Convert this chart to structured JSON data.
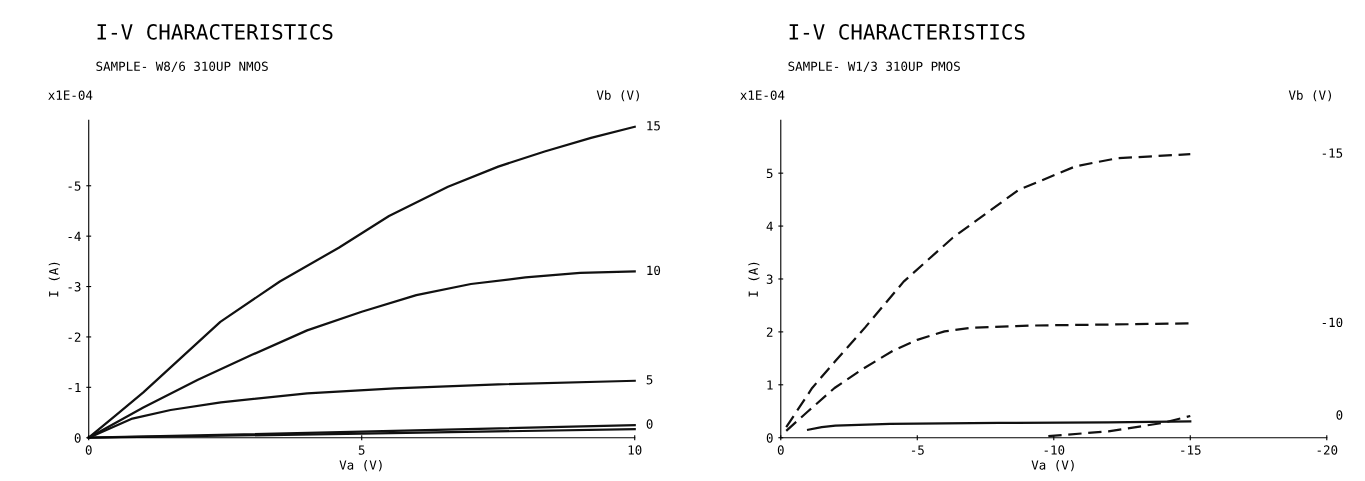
{
  "chart_data": [
    {
      "type": "line",
      "title": "I-V CHARACTERISTICS",
      "subtitle": "SAMPLE- W8/6 310UP NMOS",
      "xlabel": "Va (V)",
      "ylabel": "I (A)",
      "legend_title": "Vb (V)",
      "annotations": [
        "x1E-04"
      ],
      "xlim": [
        0,
        10
      ],
      "ylim": [
        0,
        -6.3
      ],
      "xticks": [
        0,
        5,
        10
      ],
      "yticks": [
        0,
        -1,
        -2,
        -3,
        -4,
        -5
      ],
      "grid": false,
      "legend": false,
      "line_style": "solid",
      "marker": "none",
      "series": [
        {
          "name": "15",
          "color": "#111111",
          "x": [
            0,
            0.5,
            1,
            2.41,
            3.5,
            4.58,
            5.5,
            6.58,
            7.5,
            8.35,
            9.2,
            10
          ],
          "values": [
            0,
            -0.45,
            -0.9,
            -2.3,
            -3.1,
            -3.77,
            -4.4,
            -4.98,
            -5.38,
            -5.68,
            -5.95,
            -6.17
          ]
        },
        {
          "name": "10",
          "color": "#111111",
          "x": [
            0,
            1,
            2,
            3,
            4,
            5,
            6,
            7,
            8,
            9,
            10
          ],
          "values": [
            0,
            -0.6,
            -1.15,
            -1.65,
            -2.13,
            -2.5,
            -2.83,
            -3.05,
            -3.18,
            -3.27,
            -3.3
          ]
        },
        {
          "name": "5",
          "color": "#111111",
          "x": [
            0,
            0.8,
            1.5,
            2.42,
            4,
            5.6,
            7.5,
            10
          ],
          "values": [
            0,
            -0.38,
            -0.55,
            -0.7,
            -0.88,
            -0.98,
            -1.06,
            -1.13
          ]
        },
        {
          "name": "0",
          "color": "#111111",
          "x": [
            0,
            5,
            10
          ],
          "values": [
            0,
            -0.12,
            -0.25
          ]
        },
        {
          "color": "#111111",
          "x": [
            0,
            5,
            10
          ],
          "values": [
            0,
            -0.08,
            -0.17
          ]
        }
      ]
    },
    {
      "type": "line",
      "title": "I-V CHARACTERISTICS",
      "subtitle": "SAMPLE- W1/3 310UP PMOS",
      "xlabel": "Va (V)",
      "ylabel": "I (A)",
      "legend_title": "Vb (V)",
      "annotations": [
        "x1E-04"
      ],
      "xlim": [
        0,
        -20
      ],
      "ylim": [
        0,
        6
      ],
      "xticks": [
        0,
        -5,
        -10,
        -15,
        -20
      ],
      "yticks": [
        0,
        1,
        2,
        3,
        4,
        5
      ],
      "grid": false,
      "legend": false,
      "marker": "none",
      "series": [
        {
          "name": "-15",
          "color": "#111111",
          "line_style": "dashed",
          "x": [
            -0.2,
            -1.15,
            -2,
            -3.1,
            -4.5,
            -6.3,
            -8.7,
            -10.8,
            -12.3,
            -15
          ],
          "values": [
            0.2,
            0.94,
            1.45,
            2.09,
            2.95,
            3.78,
            4.68,
            5.13,
            5.28,
            5.36
          ]
        },
        {
          "name": "-10",
          "color": "#111111",
          "line_style": "dashed",
          "x": [
            -0.2,
            -1,
            -1.97,
            -3,
            -4.1,
            -5,
            -6,
            -7,
            -9.2,
            -15
          ],
          "values": [
            0.13,
            0.5,
            0.94,
            1.3,
            1.64,
            1.85,
            2.01,
            2.08,
            2.12,
            2.16
          ]
        },
        {
          "color": "#111111",
          "line_style": "solid",
          "x": [
            -1,
            -1.5,
            -2,
            -4,
            -8,
            -12,
            -15
          ],
          "values": [
            0.15,
            0.2,
            0.23,
            0.26,
            0.28,
            0.29,
            0.31
          ]
        },
        {
          "name": "0",
          "color": "#111111",
          "line_style": "dashed",
          "x": [
            -9.8,
            -12,
            -14,
            -15
          ],
          "values": [
            0.03,
            0.12,
            0.28,
            0.41
          ]
        }
      ]
    }
  ]
}
